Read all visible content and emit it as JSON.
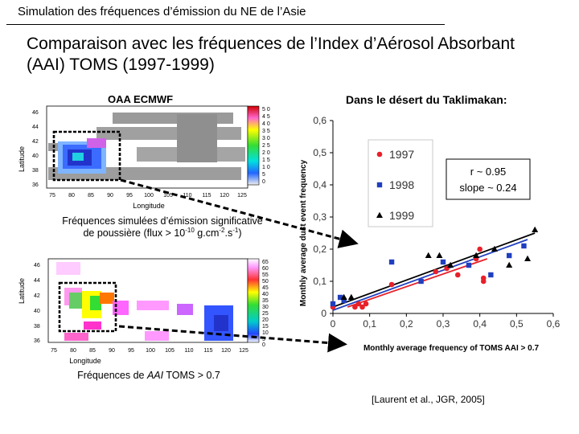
{
  "header": {
    "title": "Simulation des fréquences d’émission du NE de l’Asie",
    "subtitle_line1": "Comparaison avec les fréquences de l’Index d’Aérosol Absorbant",
    "subtitle_line2": "(AAI) TOMS (1997-1999)"
  },
  "map_top": {
    "title": "OAA ECMWF",
    "xlabel": "Longitude",
    "ylabel": "Latitude",
    "x_ticks": [
      "75",
      "80",
      "85",
      "90",
      "95",
      "100",
      "105",
      "110",
      "115",
      "120",
      "125"
    ],
    "y_ticks": [
      "46",
      "44",
      "42",
      "40",
      "38",
      "36"
    ],
    "colorbar_ticks": [
      "5 0",
      "4 5",
      "4 0",
      "3 5",
      "3 0",
      "2 5",
      "2 0",
      "1 5",
      "1 0",
      "5",
      "0"
    ],
    "caption_line1": "Fréquences simulées d’émission significative",
    "caption_line2_a": "de poussière (flux > 10",
    "caption_exp1": "-10",
    "caption_line2_b": " g.cm",
    "caption_exp2": "-2",
    "caption_line2_c": ".s",
    "caption_exp3": "-1",
    "caption_line2_d": ")"
  },
  "map_bottom": {
    "xlabel": "Longitude",
    "ylabel": "Latitude",
    "x_ticks": [
      "75",
      "80",
      "85",
      "90",
      "95",
      "100",
      "105",
      "110",
      "115",
      "120",
      "125"
    ],
    "y_ticks": [
      "46",
      "44",
      "42",
      "40",
      "38",
      "36"
    ],
    "colorbar_ticks": [
      "65",
      "60",
      "55",
      "50",
      "45",
      "40",
      "35",
      "30",
      "25",
      "20",
      "15",
      "10",
      "5",
      "0"
    ],
    "caption_a": "Fréquences de ",
    "caption_b": "AAI",
    "caption_c": " TOMS > 0.7"
  },
  "scatter": {
    "title": "Dans le désert du Taklimakan:",
    "stats_line1": "r ~ 0.95",
    "stats_line2": "slope ~ 0.24"
  },
  "chart_data": {
    "type": "scatter",
    "title": "Dans le désert du Taklimakan:",
    "xlabel": "Monthly average frequency of TOMS AAI > 0.7",
    "ylabel": "Monthly average dust event frequency",
    "xlim": [
      0,
      0.6
    ],
    "ylim": [
      0,
      0.6
    ],
    "x_ticks": [
      "0",
      "0,1",
      "0,2",
      "0,3",
      "0,4",
      "0,5",
      "0,6"
    ],
    "y_ticks": [
      "0",
      "0,1",
      "0,2",
      "0,3",
      "0,4",
      "0,5",
      "0,6"
    ],
    "grid": false,
    "legend_position": "top-left",
    "series": [
      {
        "name": "1997",
        "color": "#e8202a",
        "marker": "circle",
        "points": [
          [
            0.0,
            0.02
          ],
          [
            0.06,
            0.02
          ],
          [
            0.07,
            0.03
          ],
          [
            0.08,
            0.02
          ],
          [
            0.09,
            0.03
          ],
          [
            0.16,
            0.09
          ],
          [
            0.28,
            0.13
          ],
          [
            0.31,
            0.14
          ],
          [
            0.34,
            0.12
          ],
          [
            0.39,
            0.17
          ],
          [
            0.4,
            0.2
          ],
          [
            0.41,
            0.1
          ],
          [
            0.41,
            0.11
          ]
        ]
      },
      {
        "name": "1998",
        "color": "#1f3fbf",
        "marker": "square",
        "points": [
          [
            0.0,
            0.03
          ],
          [
            0.02,
            0.05
          ],
          [
            0.03,
            0.04
          ],
          [
            0.16,
            0.16
          ],
          [
            0.24,
            0.1
          ],
          [
            0.3,
            0.16
          ],
          [
            0.37,
            0.15
          ],
          [
            0.43,
            0.12
          ],
          [
            0.48,
            0.18
          ],
          [
            0.52,
            0.21
          ]
        ]
      },
      {
        "name": "1999",
        "color": "#000000",
        "marker": "triangle",
        "points": [
          [
            0.03,
            0.05
          ],
          [
            0.05,
            0.05
          ],
          [
            0.26,
            0.18
          ],
          [
            0.29,
            0.18
          ],
          [
            0.32,
            0.15
          ],
          [
            0.39,
            0.18
          ],
          [
            0.44,
            0.2
          ],
          [
            0.48,
            0.15
          ],
          [
            0.53,
            0.17
          ],
          [
            0.55,
            0.26
          ]
        ]
      }
    ],
    "fit_lines": [
      {
        "color": "#1f3fbf",
        "x": [
          0.0,
          0.53
        ],
        "y": [
          0.01,
          0.23
        ]
      },
      {
        "color": "#000000",
        "x": [
          0.0,
          0.55
        ],
        "y": [
          0.02,
          0.25
        ]
      },
      {
        "color": "#e8202a",
        "x": [
          0.04,
          0.42
        ],
        "y": [
          0.02,
          0.17
        ]
      }
    ]
  },
  "reference": "[Laurent et al., JGR, 2005]"
}
